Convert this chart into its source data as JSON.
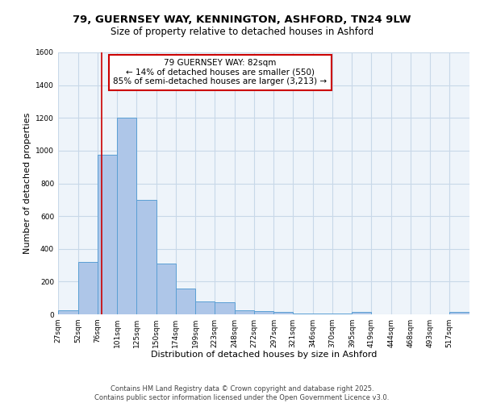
{
  "title_line1": "79, GUERNSEY WAY, KENNINGTON, ASHFORD, TN24 9LW",
  "title_line2": "Size of property relative to detached houses in Ashford",
  "xlabel": "Distribution of detached houses by size in Ashford",
  "ylabel": "Number of detached properties",
  "bin_labels": [
    "27sqm",
    "52sqm",
    "76sqm",
    "101sqm",
    "125sqm",
    "150sqm",
    "174sqm",
    "199sqm",
    "223sqm",
    "248sqm",
    "272sqm",
    "297sqm",
    "321sqm",
    "346sqm",
    "370sqm",
    "395sqm",
    "419sqm",
    "444sqm",
    "468sqm",
    "493sqm",
    "517sqm"
  ],
  "bin_edges": [
    27,
    52,
    76,
    101,
    125,
    150,
    174,
    199,
    223,
    248,
    272,
    297,
    321,
    346,
    370,
    395,
    419,
    444,
    468,
    493,
    517
  ],
  "bar_heights": [
    25,
    320,
    975,
    1200,
    700,
    310,
    160,
    80,
    75,
    25,
    20,
    15,
    5,
    5,
    5,
    15,
    0,
    0,
    0,
    0,
    15
  ],
  "bar_color": "#aec6e8",
  "bar_edge_color": "#5a9fd4",
  "property_size": 82,
  "red_line_color": "#cc0000",
  "annotation_text_line1": "79 GUERNSEY WAY: 82sqm",
  "annotation_text_line2": "← 14% of detached houses are smaller (550)",
  "annotation_text_line3": "85% of semi-detached houses are larger (3,213) →",
  "annotation_box_color": "#cc0000",
  "ylim": [
    0,
    1600
  ],
  "yticks": [
    0,
    200,
    400,
    600,
    800,
    1000,
    1200,
    1400,
    1600
  ],
  "grid_color": "#c8d8e8",
  "background_color": "#eef4fa",
  "footer_line1": "Contains HM Land Registry data © Crown copyright and database right 2025.",
  "footer_line2": "Contains public sector information licensed under the Open Government Licence v3.0.",
  "title_fontsize": 9.5,
  "subtitle_fontsize": 8.5,
  "axis_label_fontsize": 8,
  "tick_fontsize": 6.5,
  "annotation_fontsize": 7.5,
  "footer_fontsize": 6
}
